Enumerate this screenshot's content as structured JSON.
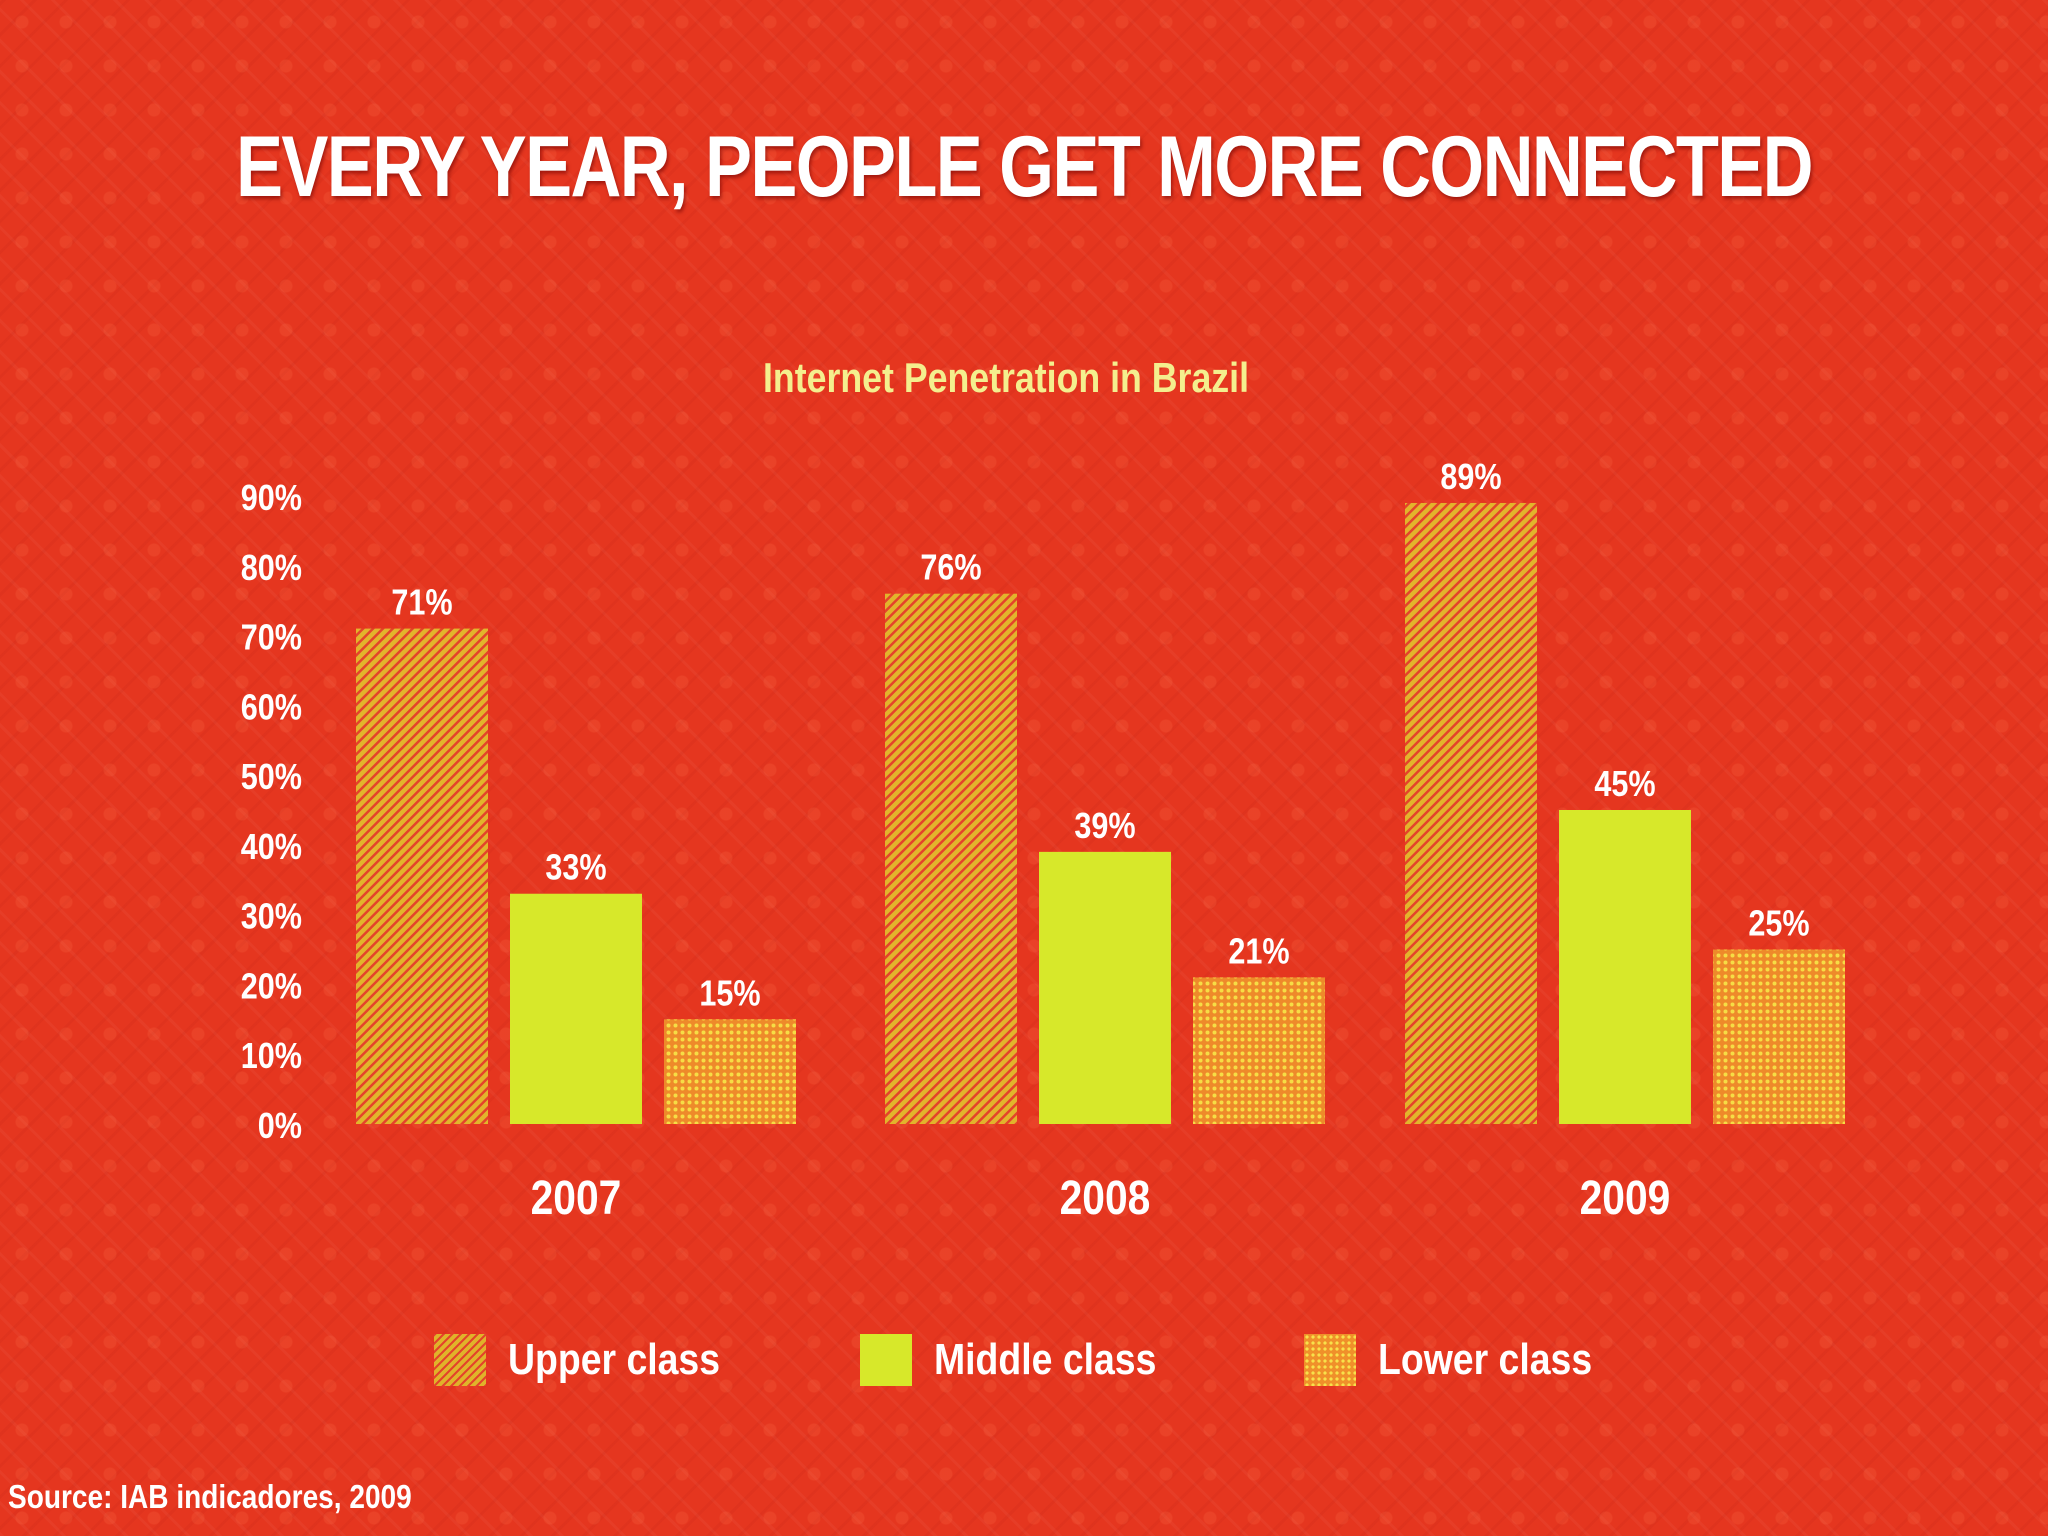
{
  "title": "EVERY YEAR, PEOPLE GET MORE CONNECTED",
  "source": "Source: IAB indicadores, 2009",
  "legend": [
    {
      "label": "Upper class",
      "series": "upper"
    },
    {
      "label": "Middle class",
      "series": "middle"
    },
    {
      "label": "Lower class",
      "series": "lower"
    }
  ],
  "chart_data": {
    "type": "bar",
    "title": "Internet Penetration  in Brazil",
    "categories": [
      "2007",
      "2008",
      "2009"
    ],
    "series": [
      {
        "name": "Upper class",
        "key": "upper",
        "values": [
          71,
          76,
          89
        ],
        "labels": [
          "71%",
          "76%",
          "89%"
        ]
      },
      {
        "name": "Middle class",
        "key": "middle",
        "values": [
          33,
          39,
          45
        ],
        "labels": [
          "33%",
          "39%",
          "45%"
        ]
      },
      {
        "name": "Lower class",
        "key": "lower",
        "values": [
          15,
          21,
          25
        ],
        "labels": [
          "15%",
          "21%",
          "25%"
        ]
      }
    ],
    "ylim": [
      0,
      90
    ],
    "yticks": [
      "0%",
      "10%",
      "20%",
      "30%",
      "40%",
      "50%",
      "60%",
      "70%",
      "80%",
      "90%"
    ],
    "xlabel": "",
    "ylabel": "",
    "grid": false,
    "legend_position": "bottom",
    "colors": {
      "upper": "#e0b32a",
      "middle": "#d7e82a",
      "lower": "#f0902a",
      "tick_text": "#ffffff",
      "subtitle_text": "#f4ef8e"
    }
  }
}
